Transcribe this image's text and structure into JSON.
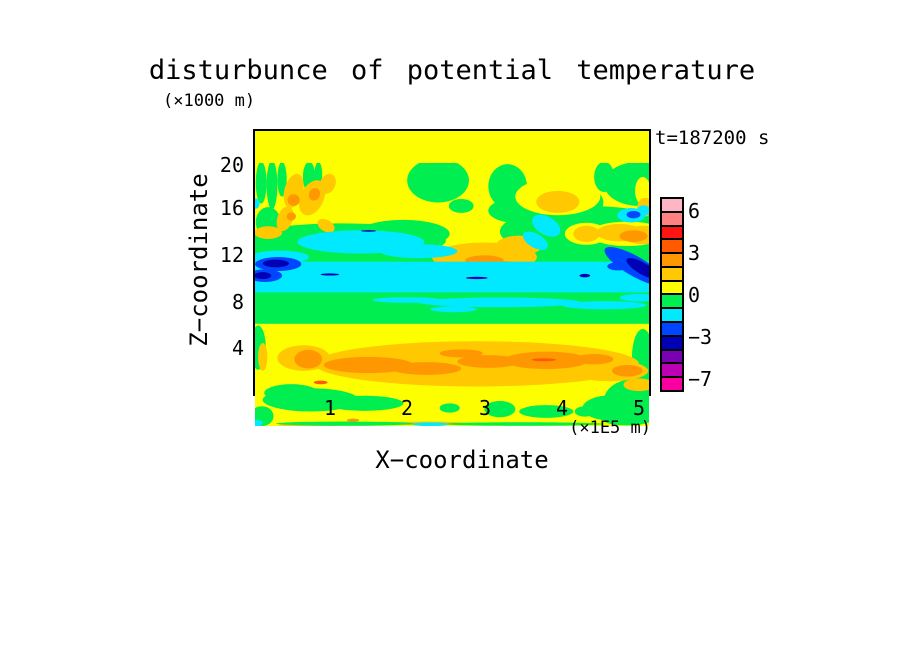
{
  "title": "disturbunce of potential temperature",
  "y_unit_label": "(×1000 m)",
  "time_label": "t=187200 s",
  "x_axis": {
    "label": "X−coordinate",
    "unit": "(×1E5 m)",
    "ticks": [
      "1",
      "2",
      "3",
      "4",
      "5"
    ]
  },
  "y_axis": {
    "label": "Z−coordinate",
    "ticks": [
      "20",
      "16",
      "12",
      "8",
      "4"
    ]
  },
  "colorbar": {
    "colors": [
      "#FFB5C5",
      "#FF8282",
      "#FF1414",
      "#FF5A00",
      "#FF9800",
      "#FFC800",
      "#FDFF00",
      "#00EE50",
      "#00E9FF",
      "#0045FF",
      "#0000B4",
      "#7A00B4",
      "#BE00B4",
      "#FA00A0"
    ],
    "labels": [
      {
        "text": "6"
      },
      {
        "text": "3"
      },
      {
        "text": "0"
      },
      {
        "text": "−3"
      },
      {
        "text": "−7"
      }
    ]
  },
  "chart_data": {
    "type": "filled_contour",
    "field": "disturbance of potential temperature",
    "time_seconds": "187200",
    "x_range": [
      0.03,
      5.13
    ],
    "x_unit": "1E5 m",
    "z_range": [
      0,
      22.7
    ],
    "z_unit": "1000 m",
    "x_ticks": [
      1,
      2,
      3,
      4,
      5
    ],
    "z_ticks": [
      20,
      16,
      12,
      8,
      4
    ],
    "level_labels": [
      6,
      3,
      0,
      -3,
      -7
    ],
    "palette": {
      "Y": "#FDFF00",
      "G": "#00EE50",
      "C": "#00E9FF",
      "B": "#0045FF",
      "N": "#0000B4",
      "D": "#FFC800",
      "O": "#FF9800",
      "R": "#FF5A00"
    },
    "background_color": "#FDFF00",
    "regions": [
      {
        "c": "G",
        "r": [
          0.03,
          8.85,
          5.13,
          11.6
        ]
      },
      {
        "c": "G",
        "r": [
          0.03,
          13.85,
          5.13,
          15.25
        ]
      },
      {
        "c": "G",
        "e": [
          1.15,
          16.0,
          1.35,
          1.5
        ]
      },
      {
        "c": "G",
        "e": [
          1.95,
          16.6,
          0.6,
          1.2
        ]
      },
      {
        "c": "G",
        "e": [
          2.4,
          21.2,
          0.4,
          1.9
        ]
      },
      {
        "c": "G",
        "e": [
          3.3,
          20.7,
          0.25,
          1.9
        ]
      },
      {
        "c": "G",
        "e": [
          3.45,
          18.6,
          0.4,
          1.1
        ]
      },
      {
        "c": "G",
        "e": [
          4.35,
          16.8,
          1.15,
          2.2
        ]
      },
      {
        "c": "G",
        "e": [
          5.0,
          20.9,
          0.45,
          1.9
        ]
      },
      {
        "c": "G",
        "e": [
          4.55,
          21.5,
          0.13,
          1.3
        ]
      },
      {
        "c": "G",
        "e": [
          0.11,
          21.0,
          0.07,
          1.8
        ]
      },
      {
        "c": "G",
        "e": [
          0.25,
          20.8,
          0.07,
          2.1
        ]
      },
      {
        "c": "G",
        "e": [
          0.38,
          21.3,
          0.06,
          1.5
        ]
      },
      {
        "c": "G",
        "e": [
          0.73,
          21.5,
          0.08,
          1.3
        ]
      },
      {
        "c": "G",
        "e": [
          0.85,
          21.7,
          0.05,
          1.1
        ]
      },
      {
        "c": "G",
        "e": [
          0.2,
          17.6,
          0.16,
          1.3
        ]
      },
      {
        "c": "G",
        "e": [
          2.7,
          19.0,
          0.16,
          0.6
        ]
      },
      {
        "c": "G",
        "e": [
          4.4,
          19.3,
          0.14,
          0.95
        ]
      },
      {
        "c": "G",
        "e": [
          0.75,
          2.3,
          0.62,
          1.0
        ]
      },
      {
        "c": "G",
        "e": [
          1.45,
          2.0,
          0.5,
          0.65
        ]
      },
      {
        "c": "G",
        "e": [
          0.5,
          2.9,
          0.35,
          0.75
        ]
      },
      {
        "c": "G",
        "e": [
          2.55,
          1.6,
          0.13,
          0.4
        ]
      },
      {
        "c": "G",
        "e": [
          3.2,
          1.5,
          0.2,
          0.7
        ]
      },
      {
        "c": "G",
        "e": [
          3.8,
          1.3,
          0.35,
          0.55
        ]
      },
      {
        "c": "G",
        "e": [
          4.3,
          1.3,
          0.13,
          0.45
        ]
      },
      {
        "c": "G",
        "e": [
          4.65,
          1.6,
          0.38,
          1.1
        ]
      },
      {
        "c": "G",
        "e": [
          4.95,
          2.3,
          0.4,
          1.8
        ]
      },
      {
        "c": "G",
        "e": [
          5.05,
          6.0,
          0.14,
          2.4
        ]
      },
      {
        "c": "G",
        "e": [
          0.07,
          6.8,
          0.1,
          1.9
        ]
      },
      {
        "c": "G",
        "e": [
          0.12,
          0.9,
          0.15,
          0.85
        ]
      },
      {
        "c": "Y",
        "e": [
          3.95,
          19.8,
          0.55,
          1.6
        ]
      },
      {
        "c": "Y",
        "e": [
          4.32,
          16.6,
          0.28,
          0.95
        ]
      },
      {
        "c": "Y",
        "e": [
          4.85,
          16.6,
          0.5,
          1.05
        ]
      },
      {
        "c": "Y",
        "e": [
          5.05,
          20.3,
          0.1,
          1.2
        ]
      },
      {
        "c": "D",
        "e": [
          3.95,
          19.35,
          0.28,
          0.95
        ]
      },
      {
        "c": "D",
        "e": [
          0.53,
          20.3,
          0.12,
          1.5,
          15
        ]
      },
      {
        "c": "D",
        "e": [
          0.77,
          19.7,
          0.15,
          1.6,
          25
        ]
      },
      {
        "c": "D",
        "e": [
          0.97,
          20.9,
          0.1,
          0.9,
          25
        ]
      },
      {
        "c": "D",
        "e": [
          0.42,
          17.9,
          0.1,
          1.1,
          20
        ]
      },
      {
        "c": "D",
        "e": [
          0.2,
          16.7,
          0.18,
          0.55
        ]
      },
      {
        "c": "D",
        "e": [
          0.95,
          17.3,
          0.12,
          0.5,
          30
        ]
      },
      {
        "c": "D",
        "e": [
          4.32,
          16.6,
          0.17,
          0.7
        ]
      },
      {
        "c": "D",
        "e": [
          4.75,
          16.7,
          0.3,
          0.75
        ]
      },
      {
        "c": "D",
        "e": [
          5.05,
          16.5,
          0.25,
          0.8
        ]
      },
      {
        "c": "D",
        "e": [
          5.08,
          18.9,
          0.1,
          0.8
        ]
      },
      {
        "c": "D",
        "e": [
          3.0,
          14.6,
          0.68,
          1.25
        ]
      },
      {
        "c": "D",
        "e": [
          3.45,
          15.6,
          0.3,
          0.85
        ]
      },
      {
        "c": "D",
        "e": [
          0.13,
          6.0,
          0.06,
          1.2
        ]
      },
      {
        "c": "O",
        "e": [
          0.53,
          19.5,
          0.08,
          0.5,
          15
        ]
      },
      {
        "c": "O",
        "e": [
          0.8,
          20.0,
          0.07,
          0.55,
          25
        ]
      },
      {
        "c": "O",
        "e": [
          0.5,
          18.1,
          0.06,
          0.35
        ]
      },
      {
        "c": "O",
        "e": [
          4.93,
          16.4,
          0.18,
          0.5
        ]
      },
      {
        "c": "O",
        "e": [
          3.0,
          14.3,
          0.25,
          0.45
        ]
      },
      {
        "c": "O",
        "e": [
          3.27,
          13.95,
          0.15,
          0.3
        ]
      },
      {
        "c": "C",
        "r": [
          0.03,
          11.55,
          5.13,
          14.2
        ]
      },
      {
        "c": "C",
        "e": [
          1.4,
          15.9,
          0.82,
          1.0
        ]
      },
      {
        "c": "C",
        "e": [
          2.15,
          15.1,
          0.5,
          0.6
        ]
      },
      {
        "c": "C",
        "e": [
          0.35,
          14.6,
          0.38,
          0.55
        ]
      },
      {
        "c": "C",
        "e": [
          3.8,
          17.3,
          0.2,
          0.78,
          30
        ]
      },
      {
        "c": "C",
        "e": [
          3.66,
          16.0,
          0.18,
          0.6,
          30
        ]
      },
      {
        "c": "C",
        "e": [
          4.9,
          18.2,
          0.18,
          0.62
        ]
      },
      {
        "c": "C",
        "e": [
          5.06,
          18.6,
          0.09,
          0.45
        ]
      },
      {
        "c": "C",
        "e": [
          0.04,
          19.2,
          0.05,
          0.45
        ]
      },
      {
        "c": "C",
        "e": [
          3.2,
          10.7,
          1.05,
          0.42
        ]
      },
      {
        "c": "C",
        "e": [
          4.55,
          10.45,
          0.55,
          0.35
        ]
      },
      {
        "c": "C",
        "e": [
          2.0,
          10.9,
          0.45,
          0.24
        ]
      },
      {
        "c": "C",
        "e": [
          5.0,
          11.1,
          0.25,
          0.33
        ]
      },
      {
        "c": "C",
        "e": [
          2.6,
          10.1,
          0.3,
          0.25
        ]
      },
      {
        "c": "B",
        "e": [
          0.33,
          14.0,
          0.3,
          0.6
        ]
      },
      {
        "c": "B",
        "e": [
          0.16,
          13.0,
          0.22,
          0.55
        ]
      },
      {
        "c": "B",
        "e": [
          4.95,
          13.8,
          0.45,
          0.85,
          30
        ]
      },
      {
        "c": "B",
        "e": [
          4.73,
          13.8,
          0.14,
          0.35
        ]
      },
      {
        "c": "B",
        "e": [
          4.93,
          18.25,
          0.09,
          0.32
        ]
      },
      {
        "c": "N",
        "e": [
          0.3,
          14.05,
          0.17,
          0.33
        ]
      },
      {
        "c": "N",
        "e": [
          0.13,
          13.0,
          0.11,
          0.3
        ]
      },
      {
        "c": "N",
        "e": [
          5.05,
          13.6,
          0.24,
          0.5,
          30
        ]
      },
      {
        "c": "N",
        "e": [
          4.3,
          13.0,
          0.07,
          0.15
        ]
      },
      {
        "c": "N",
        "e": [
          1.0,
          13.1,
          0.12,
          0.09
        ]
      },
      {
        "c": "N",
        "e": [
          2.9,
          12.8,
          0.14,
          0.1
        ]
      },
      {
        "c": "N",
        "e": [
          1.5,
          16.85,
          0.1,
          0.07
        ]
      },
      {
        "c": "D",
        "e": [
          2.9,
          5.4,
          2.1,
          1.95
        ]
      },
      {
        "c": "D",
        "e": [
          0.66,
          5.9,
          0.34,
          1.1
        ]
      },
      {
        "c": "D",
        "e": [
          4.62,
          4.8,
          0.5,
          0.9
        ]
      },
      {
        "c": "D",
        "e": [
          5.0,
          3.6,
          0.2,
          0.55
        ]
      },
      {
        "c": "D",
        "e": [
          2.25,
          0.28,
          0.5,
          0.16
        ]
      },
      {
        "c": "D",
        "e": [
          0.75,
          0.12,
          0.42,
          0.1
        ]
      },
      {
        "c": "O",
        "e": [
          0.72,
          5.8,
          0.18,
          0.8
        ]
      },
      {
        "c": "O",
        "e": [
          1.5,
          5.3,
          0.58,
          0.7
        ]
      },
      {
        "c": "O",
        "e": [
          2.25,
          5.0,
          0.45,
          0.55
        ]
      },
      {
        "c": "O",
        "e": [
          3.05,
          5.6,
          0.4,
          0.55
        ]
      },
      {
        "c": "O",
        "e": [
          3.8,
          5.7,
          0.55,
          0.75
        ]
      },
      {
        "c": "O",
        "e": [
          4.42,
          5.8,
          0.25,
          0.45
        ]
      },
      {
        "c": "O",
        "e": [
          4.85,
          4.8,
          0.2,
          0.5
        ]
      },
      {
        "c": "O",
        "e": [
          2.7,
          6.3,
          0.28,
          0.35
        ]
      },
      {
        "c": "O",
        "e": [
          1.3,
          0.55,
          0.08,
          0.13
        ]
      },
      {
        "c": "R",
        "e": [
          0.88,
          3.8,
          0.09,
          0.16
        ]
      },
      {
        "c": "R",
        "e": [
          3.77,
          5.75,
          0.16,
          0.13
        ]
      },
      {
        "c": "G",
        "e": [
          1.2,
          0.25,
          0.9,
          0.18
        ]
      },
      {
        "c": "G",
        "e": [
          3.5,
          0.22,
          1.05,
          0.15
        ]
      },
      {
        "c": "G",
        "e": [
          4.85,
          0.5,
          0.3,
          0.4
        ]
      },
      {
        "c": "C",
        "e": [
          2.3,
          0.2,
          0.24,
          0.16
        ]
      },
      {
        "c": "C",
        "e": [
          0.05,
          0.3,
          0.08,
          0.28
        ]
      }
    ]
  }
}
